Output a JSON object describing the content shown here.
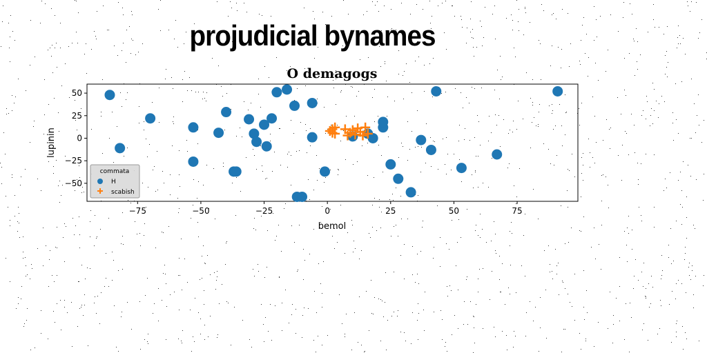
{
  "page": {
    "title": "projudicial bynames"
  },
  "chart_data": {
    "type": "scatter",
    "title": "O demagogs",
    "xlabel": "bemol",
    "ylabel": "lupinin",
    "xlim": [
      -95,
      99
    ],
    "ylim": [
      -70,
      60
    ],
    "xticks": [
      -75,
      -50,
      -25,
      0,
      25,
      50,
      75
    ],
    "yticks": [
      -50,
      -25,
      0,
      25,
      50
    ],
    "grid": false,
    "legend": {
      "title": "commata",
      "placement": "lower-left"
    },
    "colors": {
      "H": "#1f77b4",
      "scabish": "#ff7f0e"
    },
    "series": [
      {
        "name": "H",
        "marker": "circle",
        "points": [
          [
            -86,
            48
          ],
          [
            -82,
            -11
          ],
          [
            -70,
            22
          ],
          [
            -53,
            12
          ],
          [
            -53,
            -26
          ],
          [
            -43,
            6
          ],
          [
            -40,
            29
          ],
          [
            -37,
            -37
          ],
          [
            -36,
            -37
          ],
          [
            -31,
            21
          ],
          [
            -29,
            5
          ],
          [
            -28,
            -4
          ],
          [
            -25,
            15
          ],
          [
            -24,
            -9
          ],
          [
            -22,
            22
          ],
          [
            -20,
            51
          ],
          [
            -16,
            54
          ],
          [
            -13,
            36
          ],
          [
            -12,
            -65
          ],
          [
            -10,
            -65
          ],
          [
            -6,
            39
          ],
          [
            -6,
            1
          ],
          [
            -1,
            -37
          ],
          [
            10,
            2
          ],
          [
            16,
            5
          ],
          [
            18,
            0
          ],
          [
            22,
            12
          ],
          [
            22,
            18
          ],
          [
            25,
            -29
          ],
          [
            28,
            -45
          ],
          [
            33,
            -60
          ],
          [
            37,
            -2
          ],
          [
            41,
            -13
          ],
          [
            43,
            52
          ],
          [
            53,
            -33
          ],
          [
            67,
            -18
          ],
          [
            91,
            52
          ]
        ]
      },
      {
        "name": "scabish",
        "marker": "plus",
        "points": [
          [
            1,
            8
          ],
          [
            2,
            6
          ],
          [
            2,
            10
          ],
          [
            3,
            5
          ],
          [
            3,
            12
          ],
          [
            7,
            10
          ],
          [
            8,
            3
          ],
          [
            10,
            9
          ],
          [
            11,
            4
          ],
          [
            12,
            11
          ],
          [
            13,
            7
          ],
          [
            14,
            3
          ],
          [
            15,
            12
          ],
          [
            16,
            5
          ],
          [
            9,
            6
          ]
        ]
      }
    ]
  }
}
